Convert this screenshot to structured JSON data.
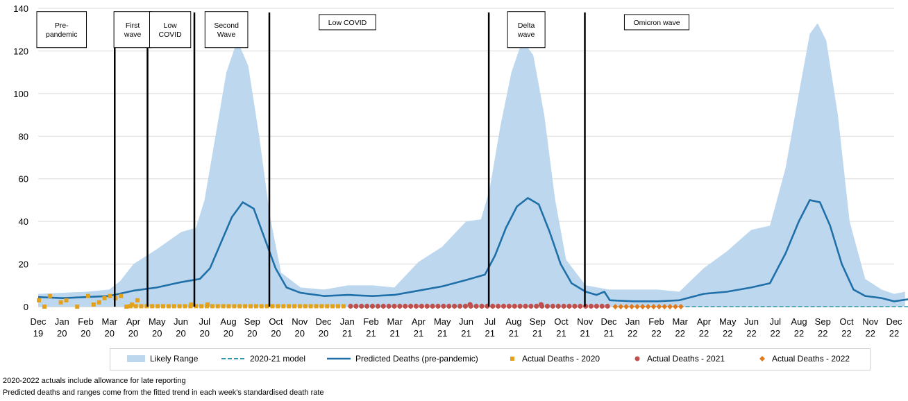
{
  "chart_data": {
    "type": "line",
    "ylim": [
      0,
      140
    ],
    "yticks": [
      0,
      20,
      40,
      60,
      80,
      100,
      120,
      140
    ],
    "x_ticks": [
      {
        "m": "Dec",
        "y": "19"
      },
      {
        "m": "Jan",
        "y": "20"
      },
      {
        "m": "Feb",
        "y": "20"
      },
      {
        "m": "Mar",
        "y": "20"
      },
      {
        "m": "Apr",
        "y": "20"
      },
      {
        "m": "May",
        "y": "20"
      },
      {
        "m": "Jun",
        "y": "20"
      },
      {
        "m": "Jul",
        "y": "20"
      },
      {
        "m": "Aug",
        "y": "20"
      },
      {
        "m": "Sep",
        "y": "20"
      },
      {
        "m": "Oct",
        "y": "20"
      },
      {
        "m": "Nov",
        "y": "20"
      },
      {
        "m": "Dec",
        "y": "20"
      },
      {
        "m": "Jan",
        "y": "21"
      },
      {
        "m": "Feb",
        "y": "21"
      },
      {
        "m": "Mar",
        "y": "21"
      },
      {
        "m": "Apr",
        "y": "21"
      },
      {
        "m": "May",
        "y": "21"
      },
      {
        "m": "Jun",
        "y": "21"
      },
      {
        "m": "Jul",
        "y": "21"
      },
      {
        "m": "Aug",
        "y": "21"
      },
      {
        "m": "Sep",
        "y": "21"
      },
      {
        "m": "Oct",
        "y": "21"
      },
      {
        "m": "Nov",
        "y": "21"
      },
      {
        "m": "Dec",
        "y": "21"
      },
      {
        "m": "Jan",
        "y": "22"
      },
      {
        "m": "Feb",
        "y": "22"
      },
      {
        "m": "Mar",
        "y": "22"
      },
      {
        "m": "Apr",
        "y": "22"
      },
      {
        "m": "May",
        "y": "22"
      },
      {
        "m": "Jun",
        "y": "22"
      },
      {
        "m": "Jul",
        "y": "22"
      },
      {
        "m": "Aug",
        "y": "22"
      },
      {
        "m": "Sep",
        "y": "22"
      },
      {
        "m": "Oct",
        "y": "22"
      },
      {
        "m": "Nov",
        "y": "22"
      },
      {
        "m": "Dec",
        "y": "22"
      }
    ],
    "phase_dividers": [
      "2020-03-08",
      "2020-04-19",
      "2020-06-18",
      "2020-09-22",
      "2021-06-30",
      "2021-10-31"
    ],
    "annotations": [
      {
        "lines": [
          "Pre-",
          "pandemic"
        ],
        "date": "2019-12-31",
        "y": 130
      },
      {
        "lines": [
          "First",
          "wave"
        ],
        "date": "2020-03-31",
        "y": 130
      },
      {
        "lines": [
          "Low",
          "COVID"
        ],
        "date": "2020-05-18",
        "y": 130
      },
      {
        "lines": [
          "Second",
          "Wave"
        ],
        "date": "2020-07-29",
        "y": 130
      },
      {
        "lines": [
          "Low COVID"
        ],
        "date": "2020-12-31",
        "y": 133.5
      },
      {
        "lines": [
          "Delta",
          "wave"
        ],
        "date": "2021-08-17",
        "y": 130
      },
      {
        "lines": [
          "Omicron wave"
        ],
        "date": "2022-01-31",
        "y": 133.5
      }
    ],
    "series": [
      {
        "name": "Likely Range",
        "kind": "band",
        "color": "#bdd7ee",
        "points": [
          [
            "2019-12-01",
            0,
            6
          ],
          [
            "2020-01-01",
            0,
            6.5
          ],
          [
            "2020-02-01",
            0,
            7
          ],
          [
            "2020-03-01",
            0,
            8
          ],
          [
            "2020-03-15",
            0,
            12
          ],
          [
            "2020-04-01",
            0,
            20
          ],
          [
            "2020-05-01",
            0,
            27
          ],
          [
            "2020-06-01",
            0,
            35
          ],
          [
            "2020-06-20",
            0,
            37
          ],
          [
            "2020-07-01",
            0,
            50
          ],
          [
            "2020-07-15",
            0,
            80
          ],
          [
            "2020-07-29",
            0,
            110
          ],
          [
            "2020-08-12",
            0,
            125
          ],
          [
            "2020-08-26",
            0,
            113
          ],
          [
            "2020-09-09",
            0,
            80
          ],
          [
            "2020-09-23",
            0,
            42
          ],
          [
            "2020-10-07",
            0,
            16
          ],
          [
            "2020-11-01",
            0,
            9
          ],
          [
            "2020-12-01",
            0,
            8
          ],
          [
            "2021-01-01",
            0,
            10
          ],
          [
            "2021-02-01",
            0,
            10
          ],
          [
            "2021-03-01",
            0,
            9
          ],
          [
            "2021-04-01",
            0,
            21
          ],
          [
            "2021-05-01",
            0,
            28
          ],
          [
            "2021-06-01",
            0,
            40
          ],
          [
            "2021-06-20",
            0,
            41
          ],
          [
            "2021-07-01",
            0,
            55
          ],
          [
            "2021-07-15",
            0,
            85
          ],
          [
            "2021-07-29",
            0,
            110
          ],
          [
            "2021-08-12",
            0,
            125
          ],
          [
            "2021-08-26",
            0,
            118
          ],
          [
            "2021-09-09",
            0,
            90
          ],
          [
            "2021-09-23",
            0,
            50
          ],
          [
            "2021-10-07",
            0,
            22
          ],
          [
            "2021-11-01",
            0,
            10
          ],
          [
            "2021-12-01",
            0,
            8
          ],
          [
            "2022-01-01",
            0,
            8
          ],
          [
            "2022-02-01",
            0,
            8
          ],
          [
            "2022-03-01",
            0,
            7
          ],
          [
            "2022-04-01",
            0,
            18
          ],
          [
            "2022-05-01",
            0,
            26
          ],
          [
            "2022-06-01",
            0,
            36
          ],
          [
            "2022-06-25",
            0,
            38
          ],
          [
            "2022-07-15",
            0,
            65
          ],
          [
            "2022-08-01",
            0,
            100
          ],
          [
            "2022-08-15",
            0,
            128
          ],
          [
            "2022-08-25",
            0,
            133
          ],
          [
            "2022-09-05",
            0,
            125
          ],
          [
            "2022-09-20",
            0,
            90
          ],
          [
            "2022-10-05",
            0,
            40
          ],
          [
            "2022-10-25",
            0,
            13
          ],
          [
            "2022-11-15",
            0,
            8
          ],
          [
            "2022-12-01",
            0,
            6
          ],
          [
            "2022-12-15",
            0,
            7
          ]
        ]
      },
      {
        "name": "Predicted Deaths (pre-pandemic)",
        "kind": "line",
        "color": "#1f6fa8",
        "points": [
          [
            "2019-12-01",
            4.5
          ],
          [
            "2020-01-01",
            4
          ],
          [
            "2020-02-01",
            4.5
          ],
          [
            "2020-03-01",
            5
          ],
          [
            "2020-04-01",
            7.5
          ],
          [
            "2020-05-01",
            9
          ],
          [
            "2020-06-01",
            11.5
          ],
          [
            "2020-06-25",
            13
          ],
          [
            "2020-07-08",
            18
          ],
          [
            "2020-07-22",
            30
          ],
          [
            "2020-08-05",
            42
          ],
          [
            "2020-08-19",
            49
          ],
          [
            "2020-09-02",
            46
          ],
          [
            "2020-09-16",
            32
          ],
          [
            "2020-09-30",
            18
          ],
          [
            "2020-10-14",
            9
          ],
          [
            "2020-11-01",
            6.5
          ],
          [
            "2020-12-01",
            5
          ],
          [
            "2021-01-01",
            5.5
          ],
          [
            "2021-02-01",
            5
          ],
          [
            "2021-03-01",
            5.5
          ],
          [
            "2021-04-01",
            7.5
          ],
          [
            "2021-05-01",
            9.5
          ],
          [
            "2021-06-01",
            12.5
          ],
          [
            "2021-06-25",
            15
          ],
          [
            "2021-07-08",
            24
          ],
          [
            "2021-07-22",
            37
          ],
          [
            "2021-08-05",
            47
          ],
          [
            "2021-08-19",
            51
          ],
          [
            "2021-09-02",
            48
          ],
          [
            "2021-09-16",
            35
          ],
          [
            "2021-09-30",
            20
          ],
          [
            "2021-10-14",
            11
          ],
          [
            "2021-11-01",
            7
          ],
          [
            "2021-11-15",
            5.5
          ],
          [
            "2021-11-25",
            7
          ],
          [
            "2021-12-02",
            3
          ],
          [
            "2022-01-01",
            2.5
          ],
          [
            "2022-02-01",
            2.5
          ],
          [
            "2022-03-01",
            3
          ],
          [
            "2022-04-01",
            6
          ],
          [
            "2022-05-01",
            7
          ],
          [
            "2022-06-01",
            9
          ],
          [
            "2022-06-25",
            11
          ],
          [
            "2022-07-15",
            25
          ],
          [
            "2022-08-01",
            40
          ],
          [
            "2022-08-15",
            50
          ],
          [
            "2022-08-28",
            49
          ],
          [
            "2022-09-10",
            38
          ],
          [
            "2022-09-25",
            20
          ],
          [
            "2022-10-10",
            8
          ],
          [
            "2022-10-25",
            5
          ],
          [
            "2022-11-15",
            4
          ],
          [
            "2022-12-01",
            2.5
          ],
          [
            "2022-12-20",
            3.5
          ]
        ]
      },
      {
        "name": "2020-21 model",
        "kind": "dashed",
        "color": "#2e97a8",
        "points": [
          [
            "2022-03-01",
            0
          ],
          [
            "2022-12-31",
            0
          ]
        ]
      },
      {
        "name": "Actual Deaths - 2020",
        "kind": "square",
        "color": "#e3a21a",
        "range": [
          "2020-03-28",
          "2020-12-31",
          0.2
        ],
        "points": [
          [
            "2019-12-02",
            3
          ],
          [
            "2019-12-09",
            0
          ],
          [
            "2019-12-16",
            5
          ],
          [
            "2019-12-30",
            2
          ],
          [
            "2020-01-06",
            3
          ],
          [
            "2020-01-20",
            0
          ],
          [
            "2020-02-03",
            5
          ],
          [
            "2020-02-10",
            1
          ],
          [
            "2020-02-17",
            2
          ],
          [
            "2020-02-24",
            4
          ],
          [
            "2020-03-02",
            5
          ],
          [
            "2020-03-09",
            4
          ],
          [
            "2020-03-16",
            5
          ],
          [
            "2020-03-23",
            0
          ],
          [
            "2020-03-30",
            1
          ],
          [
            "2020-04-06",
            3
          ],
          [
            "2020-06-14",
            1
          ],
          [
            "2020-07-05",
            1
          ]
        ]
      },
      {
        "name": "Actual Deaths - 2021",
        "kind": "circle",
        "color": "#c0504d",
        "range": [
          "2021-01-04",
          "2021-12-02",
          0.2
        ],
        "points": [
          [
            "2021-06-06",
            1
          ],
          [
            "2021-09-05",
            1
          ]
        ]
      },
      {
        "name": "Actual Deaths - 2022",
        "kind": "diamond",
        "color": "#e07a1f",
        "range": [
          "2021-12-09",
          "2022-03-03",
          0
        ],
        "points": []
      }
    ]
  },
  "legend": {
    "items": [
      "Likely Range",
      "2020-21 model",
      "Predicted Deaths (pre-pandemic)",
      "Actual Deaths - 2020",
      "Actual Deaths - 2021",
      "Actual Deaths - 2022"
    ]
  },
  "notes": [
    "2020-2022  actuals include allowance for late reporting",
    "Predicted deaths and ranges come from the fitted trend in each week's standardised death rate"
  ]
}
